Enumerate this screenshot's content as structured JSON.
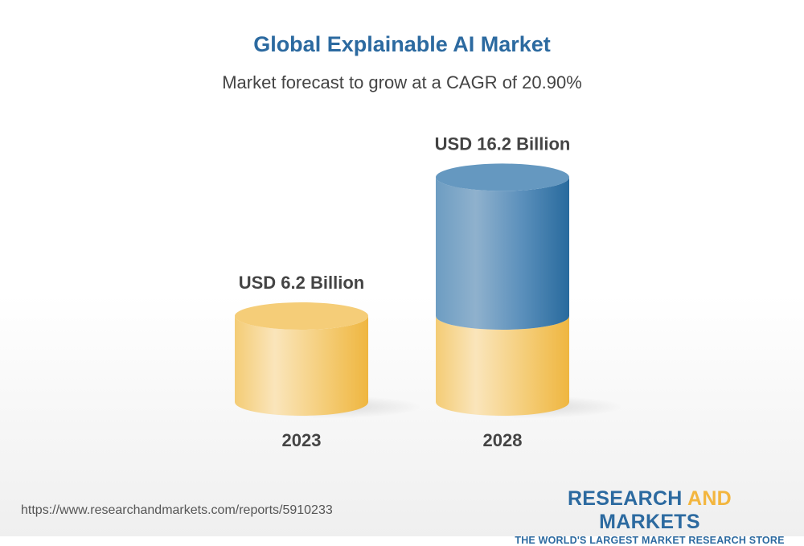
{
  "chart_data": {
    "type": "bar",
    "title": "Global Explainable AI Market",
    "subtitle": "Market forecast to grow at a CAGR of 20.90%",
    "categories": [
      "2023",
      "2028"
    ],
    "values": [
      6.2,
      16.2
    ],
    "data_labels": [
      "USD 6.2 Billion",
      "USD 16.2 Billion"
    ],
    "unit": "USD Billion",
    "style": "3d-cylinder",
    "colors": {
      "base": "#f3c35a",
      "growth": "#3a77a8"
    }
  },
  "footer": {
    "url": "https://www.researchandmarkets.com/reports/5910233",
    "logo": {
      "part1": "RESEARCH ",
      "part2": "AND",
      "part3": " MARKETS",
      "tagline": "THE WORLD'S LARGEST MARKET RESEARCH STORE"
    }
  }
}
